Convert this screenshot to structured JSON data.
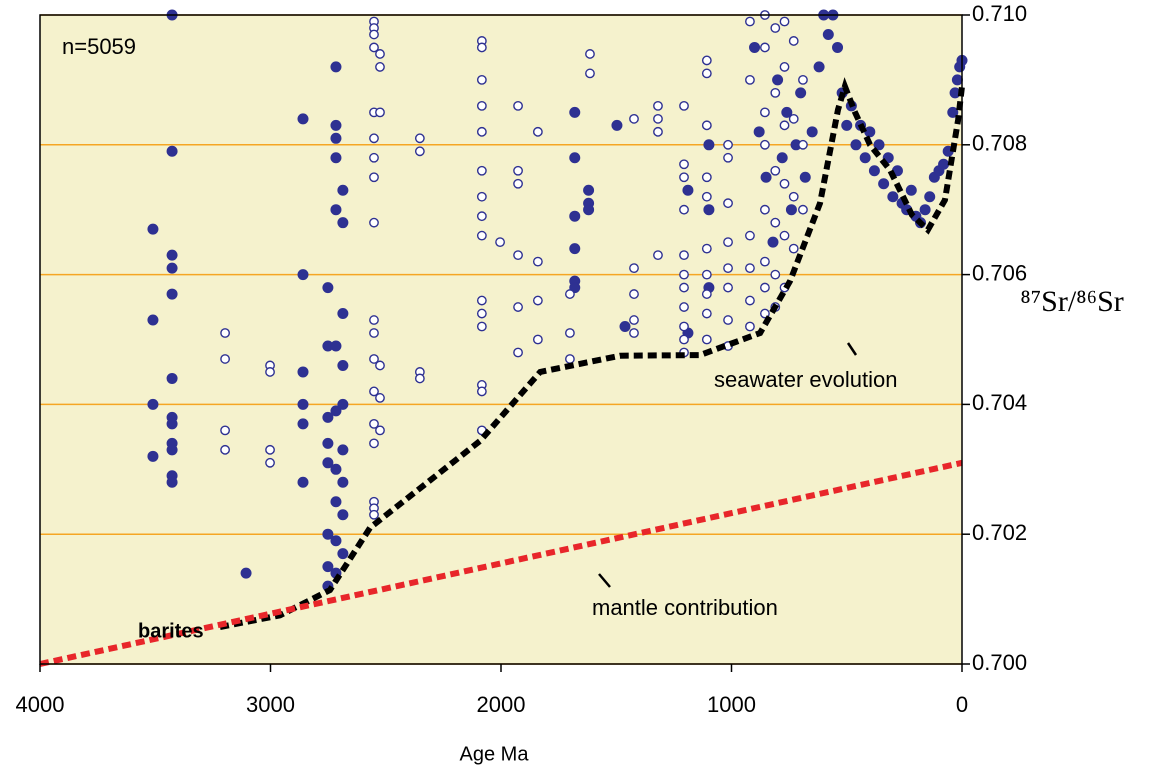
{
  "chart_data": {
    "type": "scatter",
    "xlabel": "Age Ma",
    "ylabel": "⁸⁷Sr/⁸⁶Sr",
    "annotations": {
      "count": "n=5059",
      "barites": "barites",
      "seawater": "seawater evolution",
      "mantle": "mantle contribution"
    },
    "xlim": [
      4000,
      0
    ],
    "xticks": [
      4000,
      3000,
      2000,
      1000,
      0
    ],
    "ylim": [
      0.7,
      0.71
    ],
    "yticks": [
      {
        "value": 0.7,
        "label": "0.700"
      },
      {
        "value": 0.702,
        "label": "0.702"
      },
      {
        "value": 0.704,
        "label": "0.704"
      },
      {
        "value": 0.706,
        "label": "0.706"
      },
      {
        "value": 0.708,
        "label": "0.708"
      },
      {
        "value": 0.71,
        "label": "0.710"
      }
    ],
    "grid": true,
    "grid_color": "#f5a623",
    "background": "#f5f2cd",
    "series": [
      {
        "type": "scatter",
        "marker": "filled",
        "color": "#2e3192",
        "x": [
          3510,
          3510,
          3510,
          3510,
          3427,
          3427,
          3427,
          3427,
          3427,
          3427,
          3427,
          3427,
          3427,
          3427,
          3427,
          3427,
          3106,
          2859,
          2859,
          2859,
          2859,
          2859,
          2859,
          2751,
          2751,
          2751,
          2751,
          2751,
          2751,
          2751,
          2751,
          2716,
          2716,
          2716,
          2716,
          2716,
          2716,
          2716,
          2716,
          2716,
          2716,
          2716,
          2686,
          2686,
          2686,
          2686,
          2686,
          2686,
          2686,
          2686,
          2686,
          1680,
          1680,
          1680,
          1680,
          1680,
          1680,
          1620,
          1620,
          1620,
          1497,
          1462,
          1189,
          1189,
          1098,
          1098,
          1098,
          900,
          880,
          850,
          820,
          800,
          780,
          760,
          740,
          720,
          700,
          680,
          650,
          620,
          600,
          580,
          560,
          540,
          520,
          500,
          480,
          460,
          440,
          420,
          400,
          380,
          360,
          340,
          320,
          300,
          280,
          260,
          240,
          220,
          200,
          180,
          160,
          140,
          120,
          100,
          80,
          60,
          40,
          30,
          20,
          10,
          0
        ],
        "y": [
          0.7067,
          0.7053,
          0.704,
          0.7032,
          0.71,
          0.7079,
          0.7063,
          0.7061,
          0.7057,
          0.7044,
          0.7038,
          0.7037,
          0.7034,
          0.7033,
          0.7029,
          0.7028,
          0.7014,
          0.7084,
          0.706,
          0.7045,
          0.704,
          0.7037,
          0.7028,
          0.7058,
          0.7049,
          0.7038,
          0.7034,
          0.7031,
          0.702,
          0.7015,
          0.7012,
          0.7092,
          0.7083,
          0.7081,
          0.7078,
          0.707,
          0.7049,
          0.7039,
          0.703,
          0.7025,
          0.7019,
          0.7014,
          0.7073,
          0.7068,
          0.7054,
          0.7046,
          0.704,
          0.7033,
          0.7028,
          0.7023,
          0.7017,
          0.7085,
          0.7078,
          0.7069,
          0.7064,
          0.7059,
          0.7058,
          0.7073,
          0.7071,
          0.707,
          0.7083,
          0.7052,
          0.7073,
          0.7051,
          0.708,
          0.707,
          0.7058,
          0.7095,
          0.7082,
          0.7075,
          0.7065,
          0.709,
          0.7078,
          0.7085,
          0.707,
          0.708,
          0.7088,
          0.7075,
          0.7082,
          0.7092,
          0.71,
          0.7097,
          0.71,
          0.7095,
          0.7088,
          0.7083,
          0.7086,
          0.708,
          0.7083,
          0.7078,
          0.7082,
          0.7076,
          0.708,
          0.7074,
          0.7078,
          0.7072,
          0.7076,
          0.7071,
          0.707,
          0.7073,
          0.7069,
          0.7068,
          0.707,
          0.7072,
          0.7075,
          0.7076,
          0.7077,
          0.7079,
          0.7085,
          0.7088,
          0.709,
          0.7092,
          0.7093
        ]
      },
      {
        "type": "scatter",
        "marker": "open",
        "color": "#2e3192",
        "x": [
          3197,
          3197,
          3197,
          3197,
          3002,
          3002,
          3002,
          3002,
          2551,
          2551,
          2551,
          2551,
          2551,
          2551,
          2551,
          2551,
          2551,
          2551,
          2551,
          2551,
          2551,
          2551,
          2551,
          2551,
          2551,
          2551,
          2525,
          2525,
          2525,
          2525,
          2525,
          2525,
          2352,
          2352,
          2352,
          2352,
          2083,
          2083,
          2083,
          2083,
          2083,
          2083,
          2083,
          2083,
          2083,
          2083,
          2083,
          2083,
          2083,
          2083,
          2083,
          2004,
          1926,
          1926,
          1926,
          1926,
          1926,
          1926,
          1840,
          1840,
          1840,
          1840,
          1701,
          1701,
          1701,
          1614,
          1614,
          1423,
          1423,
          1423,
          1423,
          1423,
          1319,
          1319,
          1319,
          1319,
          1206,
          1206,
          1206,
          1206,
          1206,
          1206,
          1206,
          1206,
          1206,
          1206,
          1206,
          1107,
          1107,
          1107,
          1107,
          1107,
          1107,
          1107,
          1107,
          1107,
          1107,
          1015,
          1015,
          1015,
          1015,
          1015,
          1015,
          1015,
          1015,
          920,
          920,
          920,
          920,
          920,
          920,
          855,
          855,
          855,
          855,
          855,
          855,
          855,
          855,
          810,
          810,
          810,
          810,
          810,
          810,
          770,
          770,
          770,
          770,
          770,
          770,
          730,
          730,
          730,
          730,
          690,
          690,
          690
        ],
        "y": [
          0.7051,
          0.7047,
          0.7036,
          0.7033,
          0.7046,
          0.7045,
          0.7033,
          0.7031,
          0.7099,
          0.7098,
          0.7097,
          0.7095,
          0.7085,
          0.7081,
          0.7078,
          0.7075,
          0.7068,
          0.7053,
          0.7051,
          0.7047,
          0.7042,
          0.7037,
          0.7034,
          0.7025,
          0.7024,
          0.7023,
          0.7094,
          0.7092,
          0.7085,
          0.7046,
          0.7041,
          0.7036,
          0.7081,
          0.7079,
          0.7045,
          0.7044,
          0.7096,
          0.7095,
          0.709,
          0.7086,
          0.7082,
          0.7076,
          0.7072,
          0.7069,
          0.7066,
          0.7056,
          0.7054,
          0.7052,
          0.7043,
          0.7042,
          0.7036,
          0.7065,
          0.7086,
          0.7076,
          0.7074,
          0.7063,
          0.7055,
          0.7048,
          0.7082,
          0.7062,
          0.7056,
          0.705,
          0.7057,
          0.7051,
          0.7047,
          0.7094,
          0.7091,
          0.7084,
          0.7061,
          0.7057,
          0.7053,
          0.7051,
          0.7086,
          0.7084,
          0.7082,
          0.7063,
          0.7086,
          0.7077,
          0.7075,
          0.707,
          0.7063,
          0.706,
          0.7058,
          0.7055,
          0.7052,
          0.705,
          0.7048,
          0.7093,
          0.7091,
          0.7083,
          0.7075,
          0.7072,
          0.7064,
          0.706,
          0.7057,
          0.7054,
          0.705,
          0.708,
          0.7078,
          0.7071,
          0.7065,
          0.7061,
          0.7058,
          0.7053,
          0.7049,
          0.7099,
          0.709,
          0.7066,
          0.7061,
          0.7056,
          0.7052,
          0.71,
          0.7095,
          0.7085,
          0.708,
          0.707,
          0.7062,
          0.7058,
          0.7054,
          0.7098,
          0.7088,
          0.7076,
          0.7068,
          0.706,
          0.7055,
          0.7099,
          0.7092,
          0.7083,
          0.7074,
          0.7066,
          0.7058,
          0.7096,
          0.7084,
          0.7072,
          0.7064,
          0.709,
          0.708,
          0.707
        ]
      },
      {
        "type": "line",
        "name": "seawater evolution",
        "color": "#000000",
        "x": [
          3219,
          2959,
          2742,
          2568,
          2090,
          1830,
          1484,
          1137,
          876,
          746,
          616,
          538,
          508,
          464,
          399,
          312,
          217,
          148,
          74,
          17,
          0
        ],
        "y": [
          0.70057,
          0.70075,
          0.70114,
          0.7021,
          0.70344,
          0.7045,
          0.70475,
          0.70476,
          0.7051,
          0.7059,
          0.7071,
          0.70854,
          0.7089,
          0.7085,
          0.708,
          0.70761,
          0.70692,
          0.70669,
          0.70715,
          0.70838,
          0.7089
        ]
      },
      {
        "type": "line",
        "name": "mantle contribution",
        "color": "#e8262a",
        "x": [
          4000,
          0
        ],
        "y": [
          0.7,
          0.7031
        ]
      }
    ]
  }
}
